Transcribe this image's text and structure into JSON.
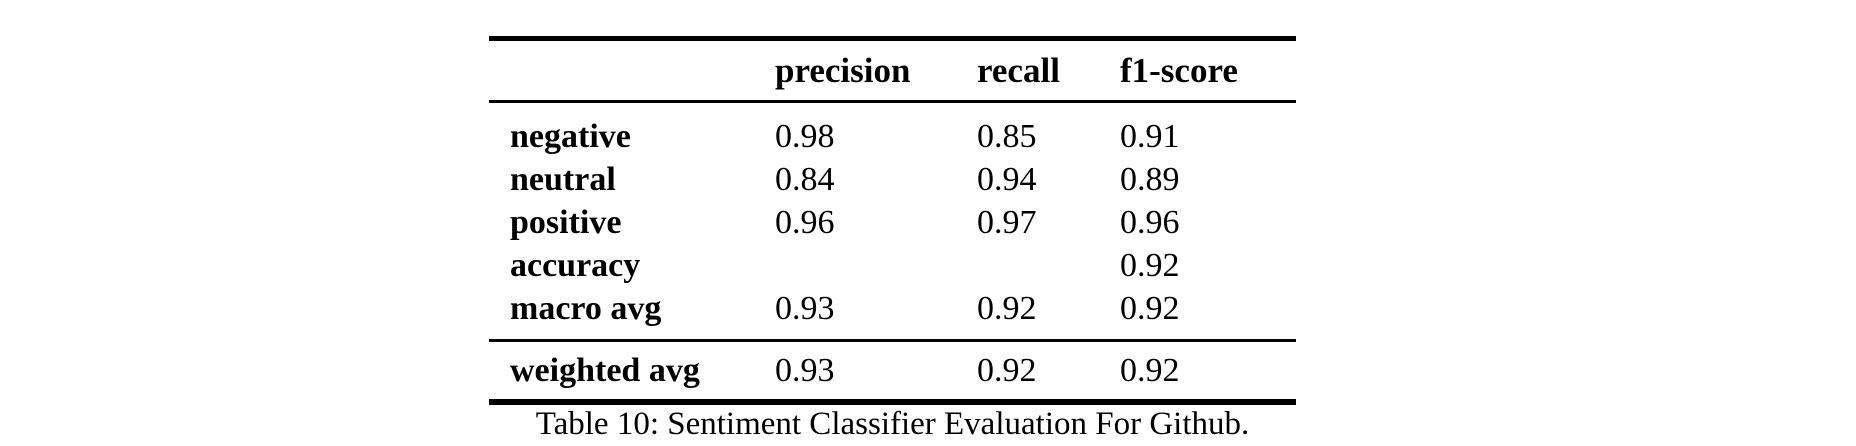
{
  "page": {
    "background": "#ffffff",
    "text_color": "#000000"
  },
  "table": {
    "header": {
      "precision": "precision",
      "recall": "recall",
      "f1_score": "f1-score"
    },
    "rows": [
      {
        "label": "negative",
        "precision": "0.98",
        "recall": "0.85",
        "f1": "0.91"
      },
      {
        "label": "neutral",
        "precision": "0.84",
        "recall": "0.94",
        "f1": "0.89"
      },
      {
        "label": "positive",
        "precision": "0.96",
        "recall": "0.97",
        "f1": "0.96"
      },
      {
        "label": "accuracy",
        "precision": "",
        "recall": "",
        "f1": "0.92"
      },
      {
        "label": "macro avg",
        "precision": "0.93",
        "recall": "0.92",
        "f1": "0.92"
      }
    ],
    "footer": {
      "label": "weighted avg",
      "precision": "0.93",
      "recall": "0.92",
      "f1": "0.92"
    }
  },
  "caption": "Table 10: Sentiment Classifier Evaluation For Github."
}
